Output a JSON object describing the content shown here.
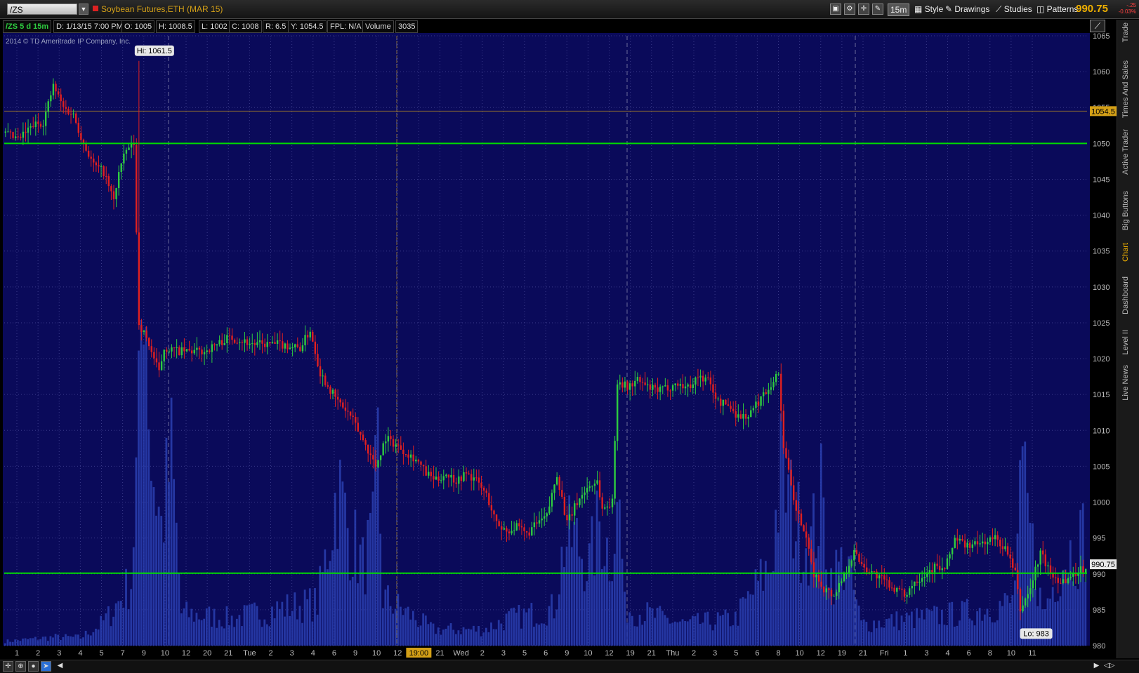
{
  "toolbar": {
    "symbol": "/ZS",
    "description": "Soybean Futures,ETH (MAR 15)",
    "timeframe": "15m",
    "style_label": "Style",
    "drawings_label": "Drawings",
    "studies_label": "Studies",
    "patterns_label": "Patterns",
    "last_price": "990.75",
    "change": "-.25",
    "change_pct": "-0.03%"
  },
  "infobar": {
    "symbol_period": "/ZS 5 d 15m",
    "date": "D: 1/13/15 7:00 PM",
    "open": "O: 1005",
    "high": "H: 1008.5",
    "low": "L: 1002",
    "close": "C: 1008",
    "range": "R: 6.5",
    "y": "Y: 1054.5",
    "fpl": "FPL: N/A",
    "volume_label": "Volume",
    "volume_value": "3035"
  },
  "copyright": "2014 © TD Ameritrade IP Company, Inc.",
  "sidebar_tabs": [
    "Trade",
    "Times And Sales",
    "Active Trader",
    "Big Buttons",
    "Chart",
    "Dashboard",
    "Level II",
    "Live News"
  ],
  "colors": {
    "background": "#0a0a5a",
    "up": "#2ecc40",
    "down": "#e02020",
    "volume": "#2a3fb0",
    "level": "#00dd00",
    "cursor": "#8a6a30"
  },
  "chart_data": {
    "type": "candlestick",
    "ylim": [
      980,
      1065
    ],
    "y_ticks": [
      1065,
      1060,
      1055,
      1050,
      1045,
      1040,
      1035,
      1030,
      1025,
      1020,
      1015,
      1010,
      1005,
      1000,
      995,
      990,
      985,
      980
    ],
    "x_tick_labels": [
      "1",
      "2",
      "3",
      "4",
      "5",
      "7",
      "9",
      "10",
      "12",
      "20",
      "21",
      "Tue",
      "2",
      "3",
      "4",
      "6",
      "9",
      "10",
      "12",
      "19:00",
      "21",
      "Wed",
      "2",
      "3",
      "5",
      "6",
      "9",
      "10",
      "12",
      "19",
      "21",
      "Thu",
      "2",
      "3",
      "5",
      "6",
      "8",
      "10",
      "12",
      "19",
      "21",
      "Fri",
      "1",
      "3",
      "4",
      "6",
      "8",
      "10",
      "11"
    ],
    "hi_label": "Hi: 1061.5",
    "lo_label": "Lo: 983",
    "cursor_price": "1054.5",
    "last_price_label": "990.75",
    "horizontal_levels": [
      1050,
      990.1
    ],
    "path_anchors": [
      [
        0,
        1051.5
      ],
      [
        6,
        1050.5
      ],
      [
        12,
        1052.5
      ],
      [
        16,
        1053
      ],
      [
        20,
        1058
      ],
      [
        24,
        1055
      ],
      [
        28,
        1054
      ],
      [
        32,
        1050
      ],
      [
        36,
        1047
      ],
      [
        40,
        1046
      ],
      [
        44,
        1042
      ],
      [
        46,
        1046
      ],
      [
        49,
        1049
      ],
      [
        52,
        1050
      ],
      [
        54,
        1025
      ],
      [
        58,
        1022
      ],
      [
        62,
        1018
      ],
      [
        64,
        1021.5
      ],
      [
        70,
        1021
      ],
      [
        80,
        1021
      ],
      [
        90,
        1023
      ],
      [
        100,
        1022
      ],
      [
        110,
        1022
      ],
      [
        118,
        1021.5
      ],
      [
        122,
        1024
      ],
      [
        126,
        1018
      ],
      [
        132,
        1014.5
      ],
      [
        138,
        1012
      ],
      [
        144,
        1008
      ],
      [
        148,
        1005
      ],
      [
        152,
        1009
      ],
      [
        156,
        1008
      ],
      [
        160,
        1007
      ],
      [
        164,
        1006
      ],
      [
        168,
        1004
      ],
      [
        172,
        1003
      ],
      [
        176,
        1004
      ],
      [
        180,
        1003
      ],
      [
        184,
        1004
      ],
      [
        188,
        1003
      ],
      [
        192,
        1001
      ],
      [
        196,
        997
      ],
      [
        200,
        996
      ],
      [
        204,
        996.5
      ],
      [
        208,
        995.5
      ],
      [
        212,
        997
      ],
      [
        216,
        998
      ],
      [
        220,
        1004
      ],
      [
        224,
        997
      ],
      [
        228,
        1000
      ],
      [
        232,
        1002
      ],
      [
        236,
        1003
      ],
      [
        238,
        999
      ],
      [
        242,
        1000
      ],
      [
        244,
        1017
      ],
      [
        248,
        1016
      ],
      [
        252,
        1017
      ],
      [
        256,
        1016
      ],
      [
        260,
        1015.5
      ],
      [
        264,
        1016
      ],
      [
        268,
        1016.5
      ],
      [
        272,
        1016
      ],
      [
        276,
        1017.5
      ],
      [
        280,
        1017
      ],
      [
        284,
        1014
      ],
      [
        288,
        1013.5
      ],
      [
        292,
        1012
      ],
      [
        296,
        1012
      ],
      [
        300,
        1014
      ],
      [
        304,
        1016
      ],
      [
        308,
        1018
      ],
      [
        310,
        1008
      ],
      [
        314,
        1000
      ],
      [
        318,
        996
      ],
      [
        322,
        990
      ],
      [
        326,
        988
      ],
      [
        330,
        987
      ],
      [
        334,
        990
      ],
      [
        338,
        993
      ],
      [
        342,
        991
      ],
      [
        346,
        990
      ],
      [
        350,
        989
      ],
      [
        354,
        988
      ],
      [
        358,
        987
      ],
      [
        362,
        989
      ],
      [
        366,
        990
      ],
      [
        370,
        991
      ],
      [
        374,
        990.5
      ],
      [
        378,
        995
      ],
      [
        382,
        994
      ],
      [
        386,
        994
      ],
      [
        390,
        994.5
      ],
      [
        394,
        995
      ],
      [
        398,
        993.5
      ],
      [
        402,
        990
      ],
      [
        404,
        985
      ],
      [
        408,
        988
      ],
      [
        412,
        993
      ],
      [
        416,
        990
      ],
      [
        420,
        989
      ],
      [
        424,
        989.5
      ],
      [
        428,
        990.75
      ]
    ],
    "volume_envelope": [
      [
        0,
        80
      ],
      [
        10,
        120
      ],
      [
        20,
        160
      ],
      [
        30,
        150
      ],
      [
        38,
        400
      ],
      [
        42,
        600
      ],
      [
        46,
        900
      ],
      [
        50,
        1200
      ],
      [
        53,
        4000
      ],
      [
        55,
        8000
      ],
      [
        58,
        3500
      ],
      [
        62,
        2200
      ],
      [
        66,
        3500
      ],
      [
        70,
        600
      ],
      [
        90,
        500
      ],
      [
        110,
        700
      ],
      [
        124,
        800
      ],
      [
        128,
        1800
      ],
      [
        132,
        3000
      ],
      [
        136,
        2200
      ],
      [
        142,
        1500
      ],
      [
        146,
        2000
      ],
      [
        148,
        3600
      ],
      [
        150,
        900
      ],
      [
        170,
        300
      ],
      [
        190,
        300
      ],
      [
        200,
        500
      ],
      [
        210,
        600
      ],
      [
        218,
        700
      ],
      [
        222,
        1900
      ],
      [
        226,
        2000
      ],
      [
        232,
        1500
      ],
      [
        236,
        2300
      ],
      [
        240,
        1700
      ],
      [
        244,
        2600
      ],
      [
        246,
        700
      ],
      [
        270,
        400
      ],
      [
        290,
        500
      ],
      [
        304,
        1500
      ],
      [
        308,
        3200
      ],
      [
        312,
        2600
      ],
      [
        316,
        2100
      ],
      [
        320,
        1900
      ],
      [
        324,
        2700
      ],
      [
        328,
        1300
      ],
      [
        334,
        1600
      ],
      [
        340,
        400
      ],
      [
        380,
        600
      ],
      [
        400,
        800
      ],
      [
        404,
        3000
      ],
      [
        408,
        1800
      ],
      [
        412,
        600
      ],
      [
        420,
        1600
      ],
      [
        428,
        2000
      ]
    ]
  }
}
